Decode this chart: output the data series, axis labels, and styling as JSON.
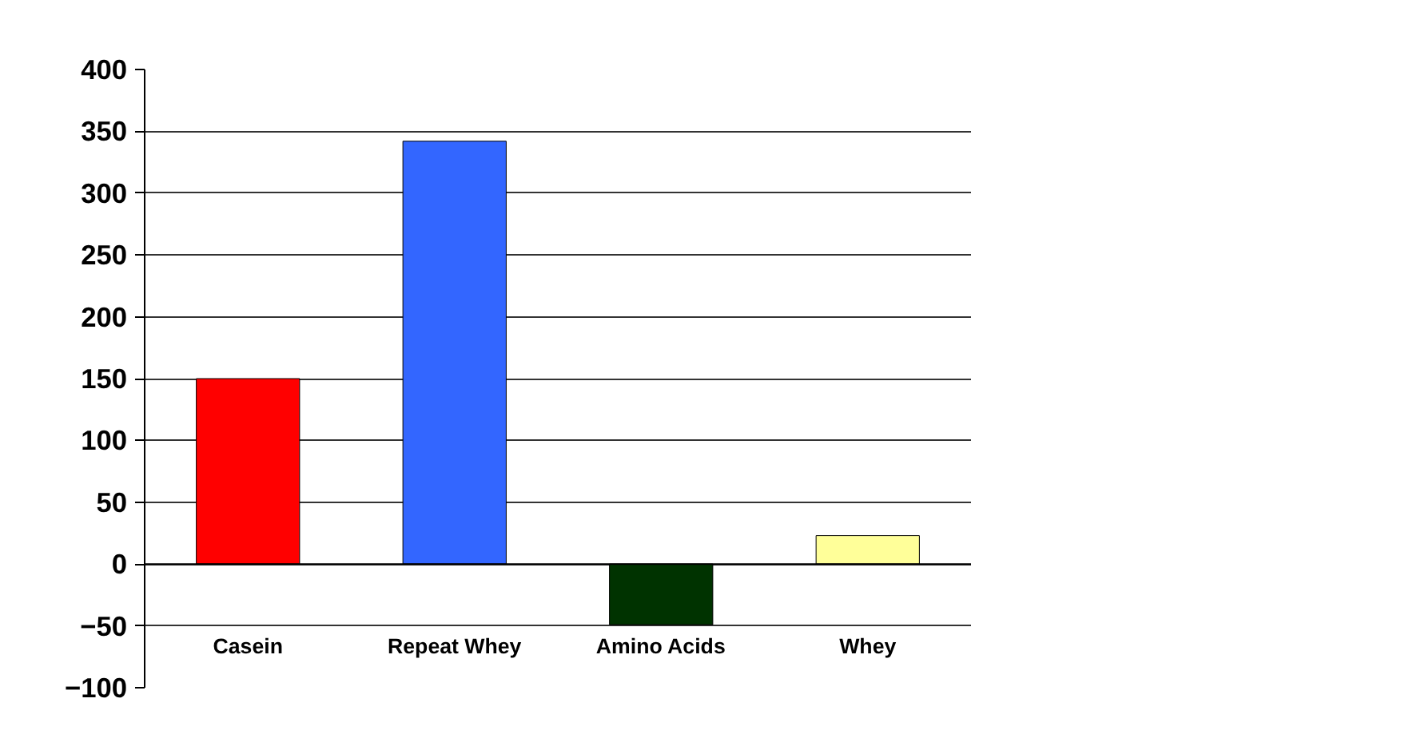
{
  "chart_data": {
    "type": "bar",
    "categories": [
      "Casein",
      "Repeat Whey",
      "Amino Acids",
      "Whey"
    ],
    "values": [
      150,
      342,
      -49,
      23
    ],
    "colors": [
      "#ff0000",
      "#3366ff",
      "#003300",
      "#ffff99"
    ],
    "ylim": [
      -100,
      400
    ],
    "yticks": [
      -100,
      -50,
      0,
      50,
      100,
      150,
      200,
      250,
      300,
      350,
      400
    ],
    "grid": "y"
  }
}
